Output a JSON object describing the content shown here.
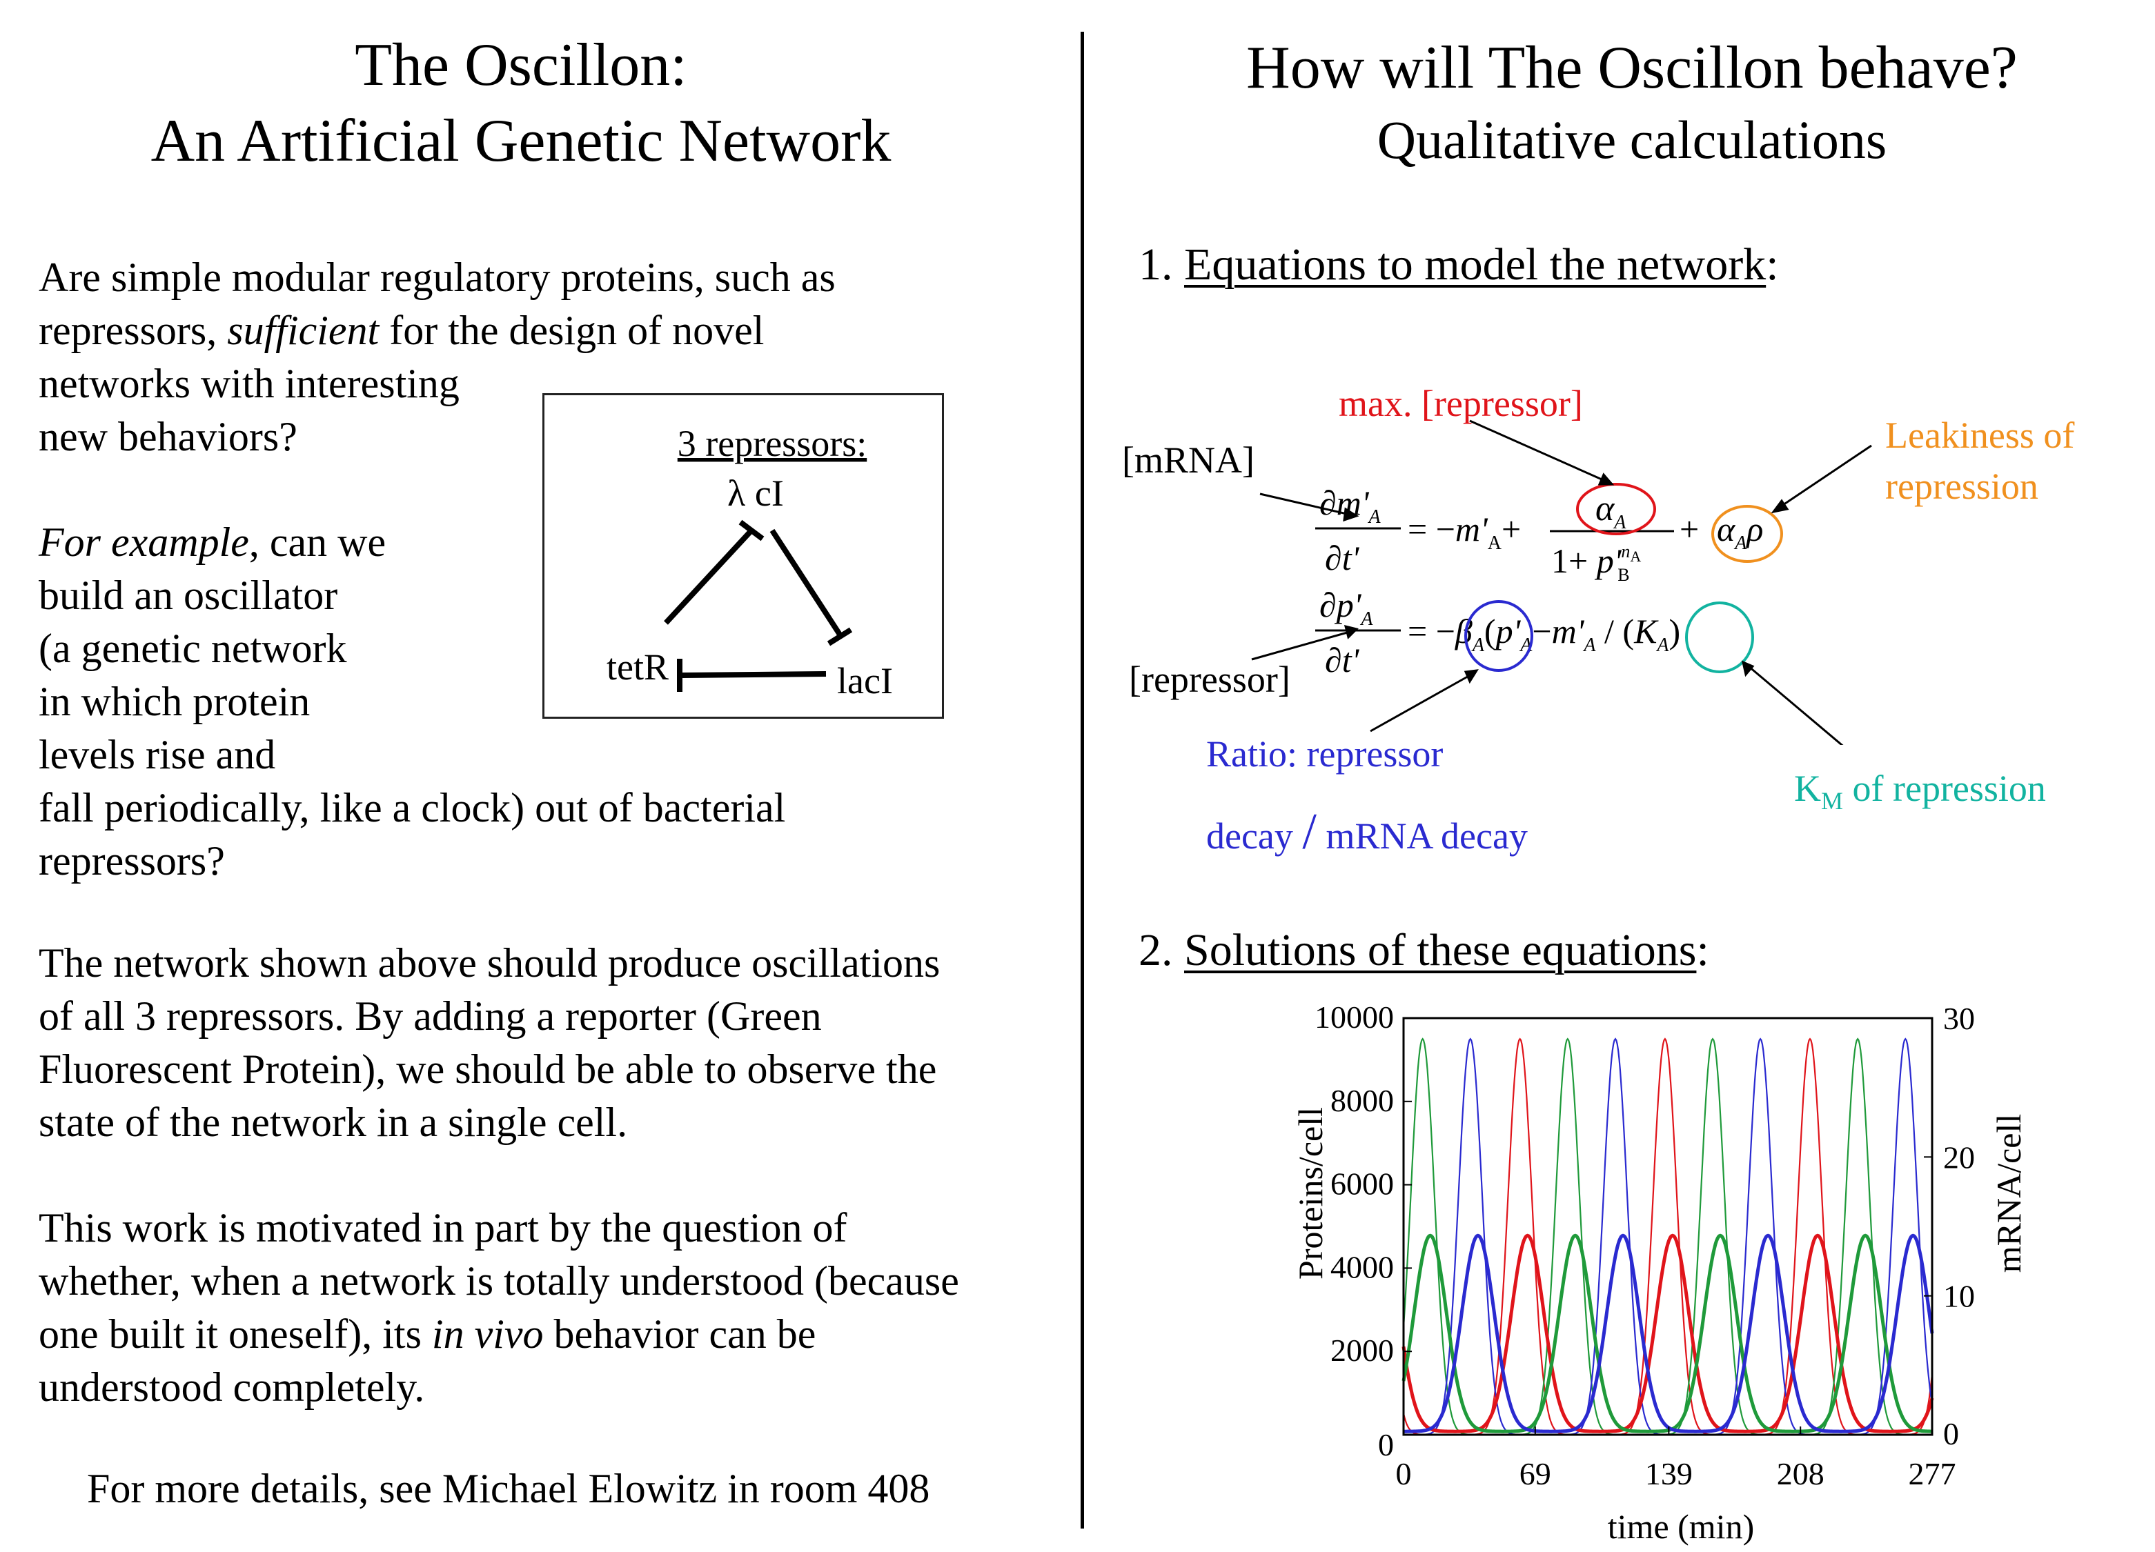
{
  "left": {
    "title_line1": "The Oscillon:",
    "title_line2": "An Artificial Genetic Network",
    "p1": [
      "Are simple modular regulatory proteins, such as",
      "repressors, ",
      "sufficient",
      " for the design of novel",
      "networks with interesting",
      "new behaviors?"
    ],
    "p2_lines": [
      "For example",
      ", can we",
      "build an oscillator",
      "(a genetic network",
      "in which protein",
      "levels rise and",
      "fall periodically, like a clock) out of bacterial",
      "repressors?"
    ],
    "p3_lines": [
      "The network shown above should produce oscillations",
      "of all 3 repressors.  By adding a reporter (Green",
      "Fluorescent Protein), we should be able to observe the",
      "state of the network in a single cell."
    ],
    "p4_lines": [
      "This work is motivated in part by the question of",
      "whether, when a network is totally understood (because",
      "one built it oneself), its ",
      "in vivo",
      " behavior can be",
      "understood completely."
    ],
    "footer": "For more details, see Michael Elowitz in room 408",
    "diagram": {
      "header": "3 repressors:",
      "node_top": "λ cI",
      "node_left": "tetR",
      "node_right": "lacI"
    }
  },
  "right": {
    "title": "How will The Oscillon behave?",
    "subtitle": "Qualitative calculations",
    "heading1_num": "1. ",
    "heading1": "Equations to model the network",
    "heading1_end": ":",
    "heading2_num": "2. ",
    "heading2": "Solutions of these equations",
    "heading2_end": ":",
    "annotations": {
      "max_repressor": "max. [repressor]",
      "mrna": "[mRNA]",
      "leak1": "Leakiness of",
      "leak2": "repression",
      "repressor": "[repressor]",
      "ratio1": "Ratio: repressor",
      "ratio2a": "decay",
      "ratio_slash": "/",
      "ratio2b": "mRNA decay",
      "km": "K",
      "km_sub": "M",
      "km_rest": " of repression"
    },
    "colors": {
      "red": "#e0141a",
      "orange": "#f0901e",
      "blue": "#2a2ad0",
      "teal": "#12b3a0",
      "green": "#1f9a3a"
    }
  },
  "chart_data": {
    "type": "line",
    "xlabel": "time (min)",
    "ylabel_left": "Proteins/cell",
    "ylabel_right": "mRNA/cell",
    "x_ticks": [
      "0",
      "69",
      "139",
      "208",
      "277"
    ],
    "y_left_ticks": [
      "0",
      "2000",
      "4000",
      "6000",
      "8000",
      "10000"
    ],
    "y_right_ticks": [
      "0",
      "10",
      "20",
      "30"
    ],
    "xlim": [
      0,
      277
    ],
    "ylim_left": [
      0,
      10000
    ],
    "ylim_right": [
      0,
      30
    ],
    "period_min": 76,
    "series": [
      {
        "color": "#e0141a",
        "kind": "mRNA",
        "phase_min": 61,
        "peak_mRNA": 28.5
      },
      {
        "color": "#1f9a3a",
        "kind": "mRNA",
        "phase_min": 10,
        "peak_mRNA": 28.5
      },
      {
        "color": "#2a2ad0",
        "kind": "mRNA",
        "phase_min": 35,
        "peak_mRNA": 28.5
      },
      {
        "color": "#e0141a",
        "kind": "protein",
        "phase_min": 65,
        "peak_protein": 4700
      },
      {
        "color": "#1f9a3a",
        "kind": "protein",
        "phase_min": 14,
        "peak_protein": 4700
      },
      {
        "color": "#2a2ad0",
        "kind": "protein",
        "phase_min": 39,
        "peak_protein": 4700
      }
    ]
  }
}
